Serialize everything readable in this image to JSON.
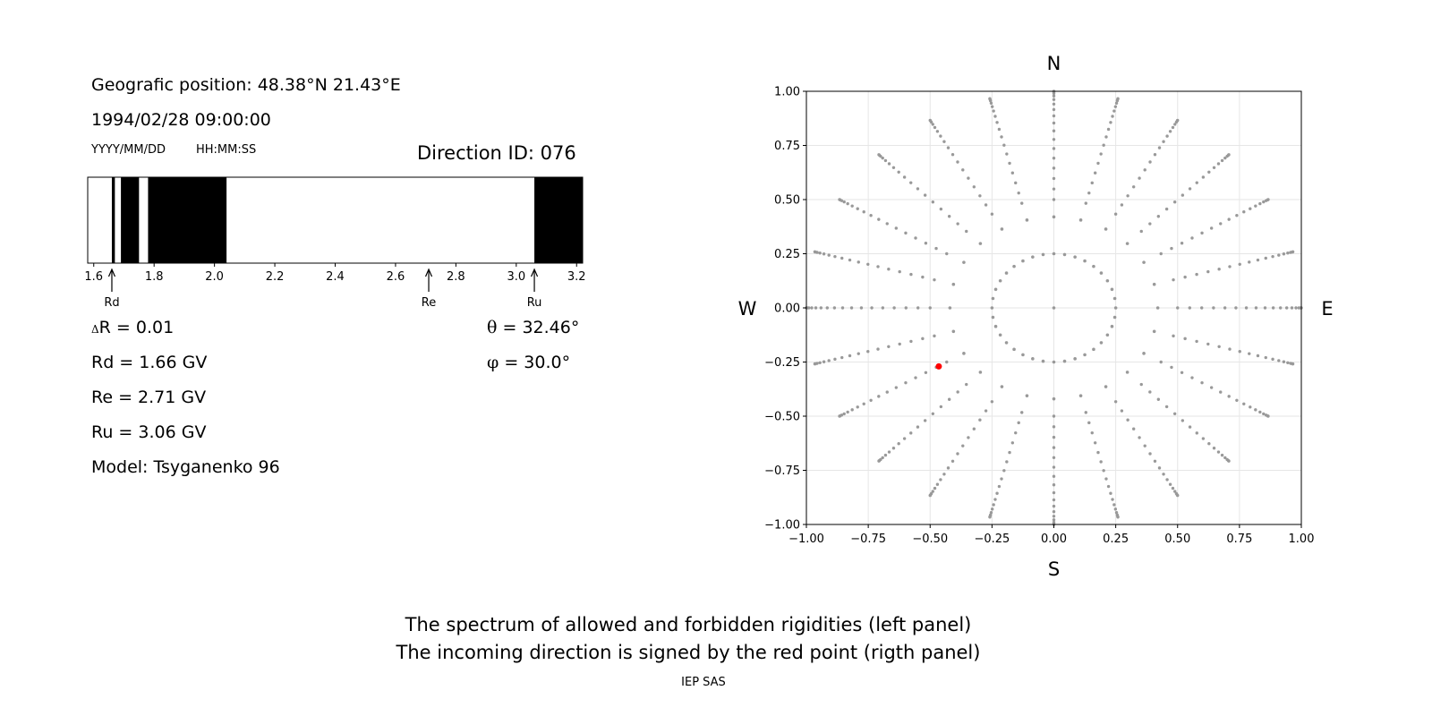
{
  "info": {
    "position": "Geografic position: 48.38°N 21.43°E",
    "datetime": "1994/02/28 09:00:00",
    "date_format": "YYYY/MM/DD",
    "time_format": "HH:MM:SS",
    "direction_id": "Direction ID: 076"
  },
  "params": {
    "delta_r_symbol": "Δ",
    "delta_r": "R = 0.01",
    "rd": "Rd = 1.66 GV",
    "re": "Re = 2.71 GV",
    "ru": "Ru = 3.06 GV",
    "model": "Model: Tsyganenko 96",
    "theta_symbol": "θ",
    "theta": " = 32.46°",
    "phi_symbol": "φ",
    "phi": " = 30.0°"
  },
  "caption": {
    "line1": "The spectrum of allowed and forbidden rigidities (left panel)",
    "line2": "The incoming direction is signed by the red point (rigth panel)",
    "credit": "IEP SAS"
  },
  "colors": {
    "forbidden": "#000000",
    "allowed": "#ffffff",
    "grid_points": "#999999",
    "selected": "#ff0000"
  },
  "chart_data": [
    {
      "type": "bar",
      "title": "",
      "xlim": [
        1.58,
        3.22
      ],
      "xticks": [
        "1.6",
        "1.8",
        "2.0",
        "2.2",
        "2.4",
        "2.6",
        "2.8",
        "3.0",
        "3.2"
      ],
      "forbidden_bands": [
        [
          1.66,
          1.67
        ],
        [
          1.69,
          1.75
        ],
        [
          1.78,
          2.04
        ],
        [
          3.06,
          3.22
        ]
      ],
      "markers": [
        {
          "label": "Rd",
          "value": 1.66
        },
        {
          "label": "Re",
          "value": 2.71
        },
        {
          "label": "Ru",
          "value": 3.06
        }
      ]
    },
    {
      "type": "scatter",
      "xlim": [
        -1.0,
        1.0
      ],
      "ylim": [
        -1.0,
        1.0
      ],
      "xticks": [
        "−1.00",
        "−0.75",
        "−0.50",
        "−0.25",
        "0.00",
        "0.25",
        "0.50",
        "0.75",
        "1.00"
      ],
      "yticks": [
        "−1.00",
        "−0.75",
        "−0.50",
        "−0.25",
        "0.00",
        "0.25",
        "0.50",
        "0.75",
        "1.00"
      ],
      "grid": true,
      "compass": {
        "north": "N",
        "south": "S",
        "west": "W",
        "east": "E"
      },
      "grid_pattern": {
        "center": [
          0,
          0
        ],
        "rings_zenith_deg": [
          15,
          30,
          45,
          60,
          75,
          90
        ],
        "ring_radii": [
          0.25,
          0.42,
          0.59,
          0.75,
          0.88,
          1.0
        ],
        "azimuths_per_ring": [
          1,
          36,
          24,
          24,
          24,
          24,
          24
        ],
        "ray_azimuth_step_deg": 15
      },
      "selected_point": {
        "x": -0.465,
        "y": -0.27
      }
    }
  ]
}
